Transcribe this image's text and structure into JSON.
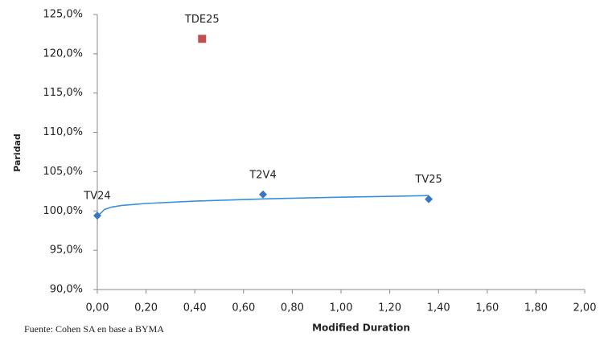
{
  "chart_data": {
    "type": "scatter",
    "y_label": "Paridad",
    "x_label": "Modified Duration",
    "source": "Fuente: Cohen SA en base a BYMA",
    "xlim": [
      0,
      2
    ],
    "ylim": [
      90,
      125
    ],
    "xticks": [
      {
        "value": 0,
        "label": "0,00"
      },
      {
        "value": 0.2,
        "label": "0,20"
      },
      {
        "value": 0.4,
        "label": "0,40"
      },
      {
        "value": 0.6,
        "label": "0,60"
      },
      {
        "value": 0.8,
        "label": "0,80"
      },
      {
        "value": 1.0,
        "label": "1,00"
      },
      {
        "value": 1.2,
        "label": "1,20"
      },
      {
        "value": 1.4,
        "label": "1,40"
      },
      {
        "value": 1.6,
        "label": "1,60"
      },
      {
        "value": 1.8,
        "label": "1,80"
      },
      {
        "value": 2.0,
        "label": "2,00"
      }
    ],
    "yticks": [
      {
        "value": 90,
        "label": "90,0%"
      },
      {
        "value": 95,
        "label": "95,0%"
      },
      {
        "value": 100,
        "label": "100,0%"
      },
      {
        "value": 105,
        "label": "105,0%"
      },
      {
        "value": 110,
        "label": "110,0%"
      },
      {
        "value": 115,
        "label": "115,0%"
      },
      {
        "value": 120,
        "label": "120,0%"
      },
      {
        "value": 125,
        "label": "125,0%"
      }
    ],
    "points": [
      {
        "label": "TV24",
        "x": 0.0,
        "y": 99.4,
        "color": "#3a76c0",
        "marker": "diamond"
      },
      {
        "label": "T2V4",
        "x": 0.68,
        "y": 102.1,
        "color": "#3a76c0",
        "marker": "diamond"
      },
      {
        "label": "TV25",
        "x": 1.36,
        "y": 101.5,
        "color": "#3a76c0",
        "marker": "diamond"
      },
      {
        "label": "TDE25",
        "x": 0.43,
        "y": 121.9,
        "color": "#c0504d",
        "marker": "square"
      }
    ],
    "trendline": {
      "color": "#3a8fd8",
      "x": [
        0.01,
        0.03,
        0.06,
        0.1,
        0.2,
        0.4,
        0.7,
        1.0,
        1.36
      ],
      "y": [
        99.6,
        100.2,
        100.5,
        100.7,
        100.95,
        101.25,
        101.55,
        101.75,
        101.95
      ]
    }
  }
}
